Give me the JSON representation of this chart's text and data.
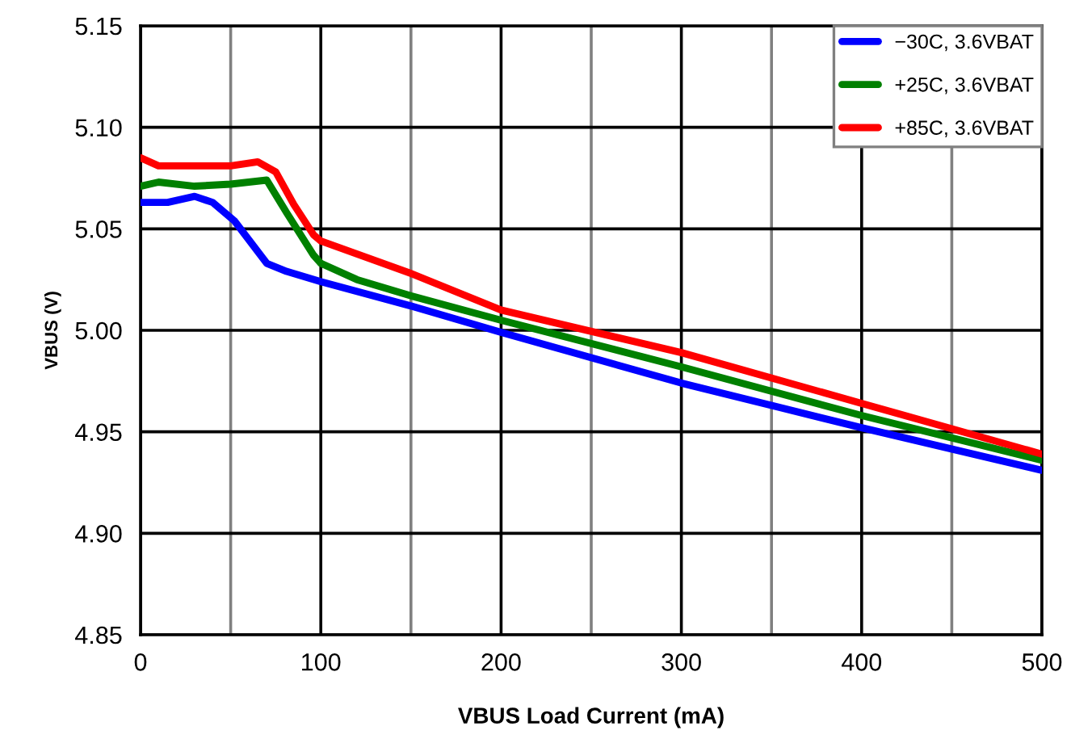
{
  "chart_data": {
    "type": "line",
    "xlabel": "VBUS Load Current (mA)",
    "ylabel": "VBUS (V)",
    "xlim": [
      0,
      500
    ],
    "xticks": [
      0,
      {
        "value": 50,
        "label": null
      },
      100,
      {
        "value": 150,
        "label": null
      },
      200,
      {
        "value": 250,
        "label": null
      },
      300,
      {
        "value": 350,
        "label": null
      },
      400,
      {
        "value": 450,
        "label": null
      },
      500
    ],
    "ylim": [
      4.85,
      5.15
    ],
    "yticks": [
      {
        "value": 4.85,
        "label": "4.85"
      },
      {
        "value": 4.9,
        "label": "4.90"
      },
      {
        "value": 4.95,
        "label": "4.95"
      },
      {
        "value": 5.0,
        "label": "5.00"
      },
      {
        "value": 5.05,
        "label": "5.05"
      },
      {
        "value": 5.1,
        "label": "5.10"
      },
      {
        "value": 5.15,
        "label": "5.15"
      }
    ],
    "grid": true,
    "legend": "top right",
    "line_style": "solid",
    "marker": "none",
    "series": [
      {
        "name": "−30C, 3.6VBAT",
        "color": "#0000ff",
        "x": [
          0,
          15,
          30,
          40,
          52,
          70,
          81,
          100,
          150,
          200,
          300,
          400,
          500
        ],
        "values": [
          5.063,
          5.063,
          5.066,
          5.063,
          5.054,
          5.033,
          5.029,
          5.024,
          5.012,
          4.999,
          4.974,
          4.952,
          4.931
        ]
      },
      {
        "name": "+25C, 3.6VBAT",
        "color": "#008000",
        "x": [
          0,
          10,
          30,
          50,
          70,
          81,
          96,
          100,
          120,
          150,
          200,
          300,
          400,
          500
        ],
        "values": [
          5.071,
          5.073,
          5.071,
          5.072,
          5.074,
          5.058,
          5.037,
          5.033,
          5.025,
          5.017,
          5.005,
          4.982,
          4.958,
          4.936
        ]
      },
      {
        "name": "+85C, 3.6VBAT",
        "color": "#ff0000",
        "x": [
          0,
          10,
          30,
          50,
          65,
          75,
          85,
          96,
          100,
          150,
          200,
          300,
          400,
          500
        ],
        "values": [
          5.085,
          5.081,
          5.081,
          5.081,
          5.083,
          5.078,
          5.062,
          5.047,
          5.044,
          5.028,
          5.01,
          4.989,
          4.964,
          4.939
        ]
      }
    ]
  }
}
